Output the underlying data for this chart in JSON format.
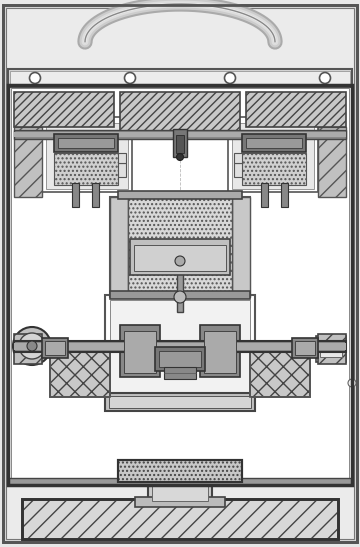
{
  "figsize": [
    3.6,
    5.47
  ],
  "dpi": 100,
  "white": "#ffffff",
  "bg_outer": "#d0d0d0",
  "bg_inner": "#f0f0f0",
  "light": "#e0e0e0",
  "mid": "#c0c0c0",
  "dark": "#888888",
  "darker": "#666666",
  "darkest": "#444444",
  "black": "#222222",
  "hatch_mid": "#b0b0b0",
  "stipple": "#d8d8d8"
}
